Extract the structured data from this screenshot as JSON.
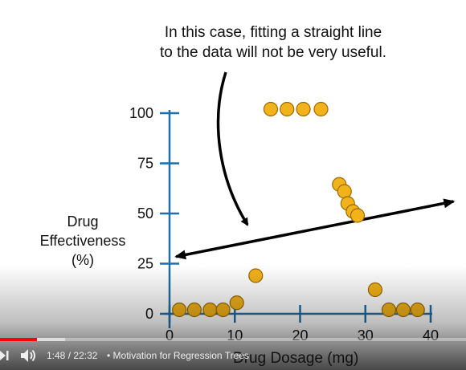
{
  "annotation": {
    "line1": "In this case, fitting a straight line",
    "line2": "to the data will not be very useful."
  },
  "player": {
    "current_time": "1:48",
    "separator": "/",
    "duration": "22:32",
    "chapter_separator": "•",
    "chapter_title": "Motivation for Regression Trees",
    "progress_played": 0.08,
    "progress_buffered": 0.14,
    "icons": [
      "next-icon",
      "volume-icon"
    ]
  },
  "colors": {
    "axis": "#1f6fa8",
    "point_fill": "#f2b21b",
    "point_stroke": "#9a6a00",
    "arrow": "#000000",
    "played": "#ff0000"
  },
  "chart_data": {
    "type": "scatter",
    "xlabel": "Drug Dosage (mg)",
    "ylabel": [
      "Drug",
      "Effectiveness",
      "(%)"
    ],
    "xlim": [
      0,
      40
    ],
    "ylim": [
      0,
      100
    ],
    "x_ticks": [
      0,
      10,
      20,
      30,
      40
    ],
    "y_ticks": [
      0,
      25,
      50,
      75,
      100
    ],
    "points": [
      {
        "x": 1.5,
        "y": 2
      },
      {
        "x": 3.8,
        "y": 2
      },
      {
        "x": 6.2,
        "y": 2
      },
      {
        "x": 8.2,
        "y": 2
      },
      {
        "x": 10.3,
        "y": 5.5
      },
      {
        "x": 13.2,
        "y": 19
      },
      {
        "x": 15.5,
        "y": 102
      },
      {
        "x": 18,
        "y": 102
      },
      {
        "x": 20.5,
        "y": 102
      },
      {
        "x": 23.2,
        "y": 102
      },
      {
        "x": 26,
        "y": 64.5
      },
      {
        "x": 26.8,
        "y": 61
      },
      {
        "x": 27.3,
        "y": 55
      },
      {
        "x": 28.1,
        "y": 51
      },
      {
        "x": 28.8,
        "y": 49
      },
      {
        "x": 31.5,
        "y": 12
      },
      {
        "x": 33.6,
        "y": 2
      },
      {
        "x": 35.8,
        "y": 2
      },
      {
        "x": 38,
        "y": 2
      }
    ],
    "fit_line": {
      "x": [
        1,
        43.5
      ],
      "y": [
        28.5,
        56
      ]
    }
  }
}
